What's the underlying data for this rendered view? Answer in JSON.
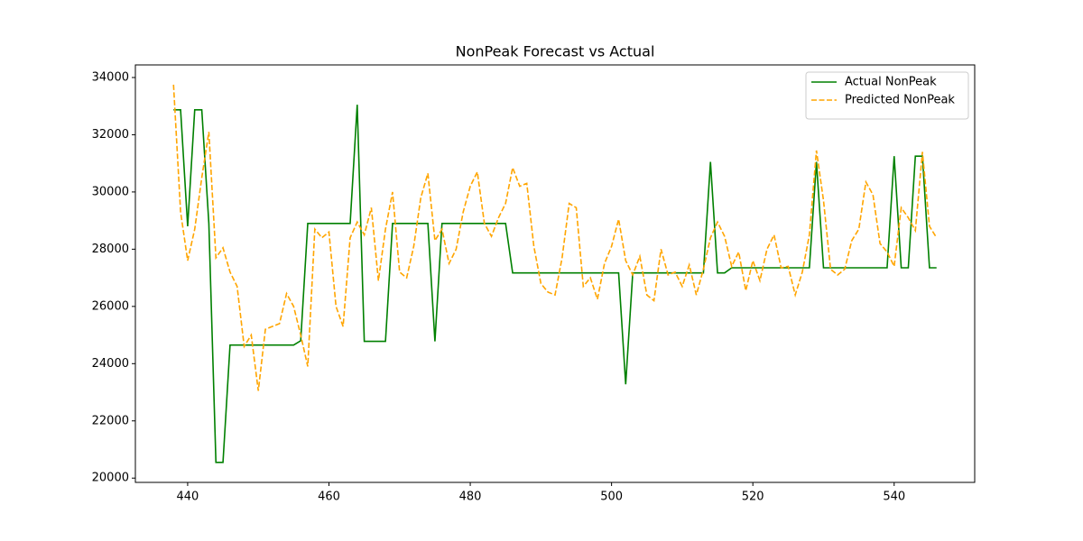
{
  "chart_data": {
    "type": "line",
    "title": "NonPeak Forecast vs Actual",
    "x": [
      438,
      439,
      440,
      441,
      442,
      443,
      444,
      445,
      446,
      447,
      448,
      449,
      450,
      451,
      452,
      453,
      454,
      455,
      456,
      457,
      458,
      459,
      460,
      461,
      462,
      463,
      464,
      465,
      466,
      467,
      468,
      469,
      470,
      471,
      472,
      473,
      474,
      475,
      476,
      477,
      478,
      479,
      480,
      481,
      482,
      483,
      484,
      485,
      486,
      487,
      488,
      489,
      490,
      491,
      492,
      493,
      494,
      495,
      496,
      497,
      498,
      499,
      500,
      501,
      502,
      503,
      504,
      505,
      506,
      507,
      508,
      509,
      510,
      511,
      512,
      513,
      514,
      515,
      516,
      517,
      518,
      519,
      520,
      521,
      522,
      523,
      524,
      525,
      526,
      527,
      528,
      529,
      530,
      531,
      532,
      533,
      534,
      535,
      536,
      537,
      538,
      539,
      540,
      541,
      542,
      543,
      544,
      545,
      546
    ],
    "series": [
      {
        "name": "Actual NonPeak",
        "color": "#008000",
        "dash": false,
        "values": [
          32870,
          32870,
          28800,
          32870,
          32870,
          28900,
          20550,
          20550,
          24650,
          24650,
          24650,
          24650,
          24650,
          24650,
          24650,
          24650,
          24650,
          24650,
          24800,
          28900,
          28900,
          28900,
          28900,
          28900,
          28900,
          28900,
          33050,
          24780,
          24780,
          24780,
          24780,
          28900,
          28900,
          28900,
          28900,
          28900,
          28900,
          24780,
          28900,
          28900,
          28900,
          28900,
          28900,
          28900,
          28900,
          28900,
          28900,
          28900,
          27170,
          27170,
          27170,
          27170,
          27170,
          27170,
          27170,
          27170,
          27170,
          27170,
          27170,
          27170,
          27170,
          27170,
          27170,
          27170,
          23280,
          27170,
          27170,
          27170,
          27170,
          27170,
          27170,
          27170,
          27170,
          27170,
          27170,
          27170,
          31050,
          27170,
          27170,
          27350,
          27350,
          27350,
          27350,
          27350,
          27350,
          27350,
          27350,
          27350,
          27350,
          27350,
          27350,
          31050,
          27350,
          27350,
          27350,
          27350,
          27350,
          27350,
          27350,
          27350,
          27350,
          27350,
          31250,
          27350,
          27350,
          31250,
          31250,
          27350,
          27350
        ]
      },
      {
        "name": "Predicted NonPeak",
        "color": "#ffa500",
        "dash": true,
        "values": [
          33750,
          29300,
          27600,
          28700,
          30500,
          32100,
          27700,
          28050,
          27200,
          26700,
          24600,
          25000,
          23050,
          25200,
          25300,
          25400,
          26450,
          26000,
          25000,
          23900,
          28700,
          28400,
          28600,
          26000,
          25300,
          28400,
          28950,
          28500,
          29450,
          26900,
          28700,
          30000,
          27200,
          27000,
          28100,
          29800,
          30650,
          28300,
          28700,
          27500,
          28000,
          29300,
          30200,
          30700,
          28900,
          28450,
          29100,
          29600,
          30850,
          30200,
          30300,
          28100,
          26800,
          26500,
          26400,
          27700,
          29600,
          29450,
          26700,
          27000,
          26250,
          27500,
          28100,
          29050,
          27600,
          27100,
          27750,
          26400,
          26200,
          28000,
          27100,
          27200,
          26700,
          27450,
          26400,
          27300,
          28400,
          28950,
          28450,
          27400,
          27900,
          26550,
          27600,
          26900,
          28000,
          28500,
          27350,
          27400,
          26400,
          27200,
          28500,
          31450,
          29700,
          27300,
          27100,
          27300,
          28300,
          28700,
          30350,
          29900,
          28200,
          27900,
          27400,
          29450,
          29100,
          28650,
          31400,
          28800,
          28400
        ]
      }
    ],
    "xlim": [
      432.6,
      551.4
    ],
    "ylim": [
      19850,
      34440
    ],
    "xticks": [
      440,
      460,
      480,
      500,
      520,
      540
    ],
    "yticks": [
      20000,
      22000,
      24000,
      26000,
      28000,
      30000,
      32000,
      34000
    ],
    "legend": "upper right"
  }
}
